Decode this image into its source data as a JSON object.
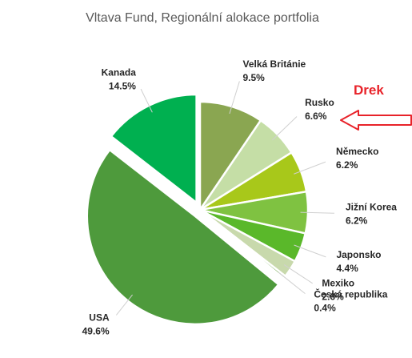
{
  "chart_data": {
    "type": "pie",
    "title": "Vltava Fund, Regionální alokace portfolia",
    "slices": [
      {
        "name": "USA",
        "value": 49.6,
        "label": "49.6%",
        "color": "#4e9a3c",
        "exploded": true
      },
      {
        "name": "Kanada",
        "value": 14.5,
        "label": "14.5%",
        "color": "#00b050",
        "exploded": true
      },
      {
        "name": "Velká Británie",
        "value": 9.5,
        "label": "9.5%",
        "color": "#8aa651",
        "exploded": false
      },
      {
        "name": "Rusko",
        "value": 6.6,
        "label": "6.6%",
        "color": "#c5dea6",
        "exploded": false
      },
      {
        "name": "Německo",
        "value": 6.2,
        "label": "6.2%",
        "color": "#a8c81a",
        "exploded": false
      },
      {
        "name": "Jižní Korea",
        "value": 6.2,
        "label": "6.2%",
        "color": "#7fc241",
        "exploded": false
      },
      {
        "name": "Japonsko",
        "value": 4.4,
        "label": "4.4%",
        "color": "#5ab82a",
        "exploded": false
      },
      {
        "name": "Mexiko",
        "value": 2.6,
        "label": "2.6%",
        "color": "#c8d9ac",
        "exploded": false
      },
      {
        "name": "Česká republika",
        "value": 0.4,
        "label": "0.4%",
        "color": "#72a850",
        "exploded": false
      }
    ],
    "legend": "none"
  },
  "annotation": {
    "text": "Drek",
    "color": "#e8232a",
    "target": "Rusko"
  }
}
